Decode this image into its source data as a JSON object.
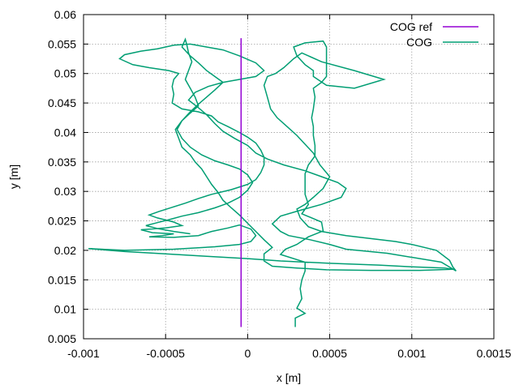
{
  "chart_data": {
    "type": "line",
    "title": "",
    "xlabel": "x [m]",
    "ylabel": "y [m]",
    "xlim": [
      -0.001,
      0.0015
    ],
    "ylim": [
      0.005,
      0.06
    ],
    "grid": true,
    "legend_position": "top-right",
    "x_ticks": [
      {
        "value": -0.001,
        "label": "-0.001"
      },
      {
        "value": -0.0005,
        "label": "-0.0005"
      },
      {
        "value": 0,
        "label": "0"
      },
      {
        "value": 0.0005,
        "label": "0.0005"
      },
      {
        "value": 0.001,
        "label": "0.001"
      },
      {
        "value": 0.0015,
        "label": "0.0015"
      }
    ],
    "y_ticks": [
      {
        "value": 0.005,
        "label": "0.005"
      },
      {
        "value": 0.01,
        "label": "0.01"
      },
      {
        "value": 0.015,
        "label": "0.015"
      },
      {
        "value": 0.02,
        "label": "0.02"
      },
      {
        "value": 0.025,
        "label": "0.025"
      },
      {
        "value": 0.03,
        "label": "0.03"
      },
      {
        "value": 0.035,
        "label": "0.035"
      },
      {
        "value": 0.04,
        "label": "0.04"
      },
      {
        "value": 0.045,
        "label": "0.045"
      },
      {
        "value": 0.05,
        "label": "0.05"
      },
      {
        "value": 0.055,
        "label": "0.055"
      },
      {
        "value": 0.06,
        "label": "0.06"
      }
    ],
    "series": [
      {
        "name": "COG ref",
        "color": "#9400d3",
        "points": [
          [
            -4e-05,
            0.007
          ],
          [
            -4e-05,
            0.056
          ]
        ]
      },
      {
        "name": "COG",
        "color": "#009e73",
        "points": [
          [
            0.00029,
            0.007
          ],
          [
            0.00029,
            0.0085
          ],
          [
            0.00035,
            0.0093
          ],
          [
            0.0003,
            0.0102
          ],
          [
            0.00033,
            0.0118
          ],
          [
            0.00032,
            0.0135
          ],
          [
            0.00033,
            0.015
          ],
          [
            0.00035,
            0.0165
          ],
          [
            0.00035,
            0.018
          ],
          [
            0.0002,
            0.0193
          ],
          [
            0.00023,
            0.0202
          ],
          [
            0.0003,
            0.021
          ],
          [
            0.00037,
            0.0223
          ],
          [
            0.00046,
            0.0233
          ],
          [
            0.00045,
            0.0248
          ],
          [
            0.00033,
            0.0262
          ],
          [
            0.00037,
            0.0278
          ],
          [
            0.00035,
            0.0295
          ],
          [
            0.00035,
            0.0312
          ],
          [
            0.00035,
            0.033
          ],
          [
            0.00037,
            0.0345
          ],
          [
            0.00041,
            0.036
          ],
          [
            0.00041,
            0.0378
          ],
          [
            0.0004,
            0.0395
          ],
          [
            0.0004,
            0.041
          ],
          [
            0.00039,
            0.0425
          ],
          [
            0.0004,
            0.044
          ],
          [
            0.00041,
            0.046
          ],
          [
            0.0004,
            0.0475
          ],
          [
            0.00045,
            0.0485
          ],
          [
            0.00048,
            0.0495
          ],
          [
            0.00048,
            0.051
          ],
          [
            0.00048,
            0.053
          ],
          [
            0.00048,
            0.0545
          ],
          [
            0.00046,
            0.0555
          ],
          [
            0.00035,
            0.0552
          ],
          [
            0.00028,
            0.0545
          ],
          [
            0.0003,
            0.053
          ],
          [
            0.00035,
            0.0515
          ],
          [
            0.0004,
            0.0505
          ],
          [
            0.0004,
            0.0495
          ],
          [
            0.00048,
            0.048
          ],
          [
            0.00065,
            0.0475
          ],
          [
            0.00083,
            0.049
          ],
          [
            0.00065,
            0.0505
          ],
          [
            0.00045,
            0.052
          ],
          [
            0.00033,
            0.0535
          ],
          [
            0.00028,
            0.0525
          ],
          [
            0.00022,
            0.051
          ],
          [
            0.00017,
            0.05
          ],
          [
            0.00012,
            0.0495
          ],
          [
            0.0001,
            0.048
          ],
          [
            0.00012,
            0.046
          ],
          [
            0.00014,
            0.044
          ],
          [
            0.00018,
            0.0425
          ],
          [
            0.00024,
            0.041
          ],
          [
            0.0003,
            0.0395
          ],
          [
            0.00035,
            0.038
          ],
          [
            0.0004,
            0.0365
          ],
          [
            0.00044,
            0.0345
          ],
          [
            0.0005,
            0.0325
          ],
          [
            0.00046,
            0.0305
          ],
          [
            0.0004,
            0.029
          ],
          [
            0.00035,
            0.0278
          ],
          [
            0.0003,
            0.027
          ],
          [
            0.00032,
            0.0255
          ],
          [
            0.00037,
            0.024
          ],
          [
            0.00045,
            0.0232
          ],
          [
            0.0006,
            0.0225
          ],
          [
            0.00075,
            0.022
          ],
          [
            0.0009,
            0.0215
          ],
          [
            0.001,
            0.021
          ],
          [
            0.00115,
            0.02
          ],
          [
            0.00123,
            0.0183
          ],
          [
            0.00125,
            0.0172
          ],
          [
            0.00127,
            0.0165
          ],
          [
            0.00118,
            0.018
          ],
          [
            0.00085,
            0.0195
          ],
          [
            0.0006,
            0.0202
          ],
          [
            0.0005,
            0.021
          ],
          [
            0.00038,
            0.0218
          ],
          [
            0.00025,
            0.0225
          ],
          [
            0.0002,
            0.0232
          ],
          [
            0.00015,
            0.0245
          ],
          [
            0.0002,
            0.0258
          ],
          [
            0.00032,
            0.0268
          ],
          [
            0.00045,
            0.0278
          ],
          [
            0.00057,
            0.029
          ],
          [
            0.0006,
            0.0305
          ],
          [
            0.00055,
            0.0315
          ],
          [
            0.00045,
            0.0325
          ],
          [
            0.00035,
            0.0335
          ],
          [
            0.00022,
            0.0345
          ],
          [
            0.00012,
            0.0355
          ],
          [
            5e-05,
            0.0365
          ],
          [
            0.0,
            0.0378
          ],
          [
            -8e-05,
            0.039
          ],
          [
            -0.00015,
            0.0402
          ],
          [
            -0.0002,
            0.0415
          ],
          [
            -0.00025,
            0.043
          ],
          [
            -0.0003,
            0.0442
          ],
          [
            -0.00036,
            0.0455
          ],
          [
            -0.00032,
            0.0468
          ],
          [
            -0.00024,
            0.0478
          ],
          [
            -0.00015,
            0.0485
          ],
          [
            -5e-05,
            0.049
          ],
          [
            5e-05,
            0.0495
          ],
          [
            0.0001,
            0.0505
          ],
          [
            5e-05,
            0.0518
          ],
          [
            -5e-05,
            0.053
          ],
          [
            -0.00015,
            0.054
          ],
          [
            -0.00025,
            0.0545
          ],
          [
            -0.00035,
            0.055
          ],
          [
            -0.00045,
            0.0548
          ],
          [
            -0.00055,
            0.0542
          ],
          [
            -0.00065,
            0.0538
          ],
          [
            -0.00075,
            0.0532
          ],
          [
            -0.00078,
            0.0525
          ],
          [
            -0.0007,
            0.0515
          ],
          [
            -0.0006,
            0.051
          ],
          [
            -0.00048,
            0.0505
          ],
          [
            -0.00042,
            0.05
          ],
          [
            -0.00045,
            0.049
          ],
          [
            -0.00046,
            0.0478
          ],
          [
            -0.00045,
            0.0465
          ],
          [
            -0.00046,
            0.045
          ],
          [
            -0.0004,
            0.044
          ],
          [
            -0.0003,
            0.0435
          ],
          [
            -0.00022,
            0.0428
          ],
          [
            -0.00018,
            0.0418
          ],
          [
            -0.00012,
            0.041
          ],
          [
            -5e-05,
            0.04
          ],
          [
            0.0,
            0.0392
          ],
          [
            5e-05,
            0.0382
          ],
          [
            8e-05,
            0.037
          ],
          [
            0.0001,
            0.0358
          ],
          [
            0.0001,
            0.0345
          ],
          [
            8e-05,
            0.0332
          ],
          [
            5e-05,
            0.032
          ],
          [
            0.0,
            0.0312
          ],
          [
            -0.0001,
            0.0303
          ],
          [
            -0.00022,
            0.0295
          ],
          [
            -0.0003,
            0.0288
          ],
          [
            -0.00038,
            0.028
          ],
          [
            -0.00046,
            0.0273
          ],
          [
            -0.00054,
            0.0266
          ],
          [
            -0.0006,
            0.026
          ],
          [
            -0.00055,
            0.0255
          ],
          [
            -0.00045,
            0.0248
          ],
          [
            -0.0004,
            0.0242
          ],
          [
            -0.0005,
            0.0238
          ],
          [
            -0.00065,
            0.0235
          ],
          [
            -0.00058,
            0.023
          ],
          [
            -0.00045,
            0.0228
          ],
          [
            -0.00052,
            0.0225
          ],
          [
            -0.0006,
            0.0223
          ],
          [
            -0.00045,
            0.0222
          ],
          [
            -0.0003,
            0.0225
          ],
          [
            -0.00022,
            0.0232
          ],
          [
            -0.00012,
            0.0238
          ],
          [
            -5e-05,
            0.0243
          ],
          [
            2e-05,
            0.0236
          ],
          [
            5e-05,
            0.0225
          ],
          [
            2e-05,
            0.0215
          ],
          [
            -5e-05,
            0.021
          ],
          [
            -0.0002,
            0.0206
          ],
          [
            -0.00045,
            0.0202
          ],
          [
            -0.00075,
            0.02
          ],
          [
            -0.00097,
            0.0203
          ],
          [
            -0.00075,
            0.0198
          ],
          [
            -0.0005,
            0.0194
          ],
          [
            -0.00025,
            0.019
          ],
          [
            0.0,
            0.0186
          ],
          [
            0.0002,
            0.0182
          ],
          [
            0.0005,
            0.0178
          ],
          [
            0.0008,
            0.0175
          ],
          [
            0.001,
            0.0172
          ],
          [
            0.0012,
            0.017
          ],
          [
            0.00125,
            0.0168
          ],
          [
            0.00105,
            0.0166
          ],
          [
            0.00075,
            0.0166
          ],
          [
            0.00048,
            0.0167
          ],
          [
            0.0003,
            0.017
          ],
          [
            0.00015,
            0.0173
          ],
          [
            0.0001,
            0.0182
          ],
          [
            0.0001,
            0.0194
          ],
          [
            0.00015,
            0.0205
          ],
          [
            0.0001,
            0.0218
          ],
          [
            5e-05,
            0.0232
          ],
          [
            0.0,
            0.0246
          ],
          [
            -5e-05,
            0.026
          ],
          [
            -0.0001,
            0.0272
          ],
          [
            -0.00015,
            0.0285
          ],
          [
            -0.00018,
            0.0298
          ],
          [
            -0.00022,
            0.0312
          ],
          [
            -0.00025,
            0.0325
          ],
          [
            -0.00028,
            0.0338
          ],
          [
            -0.00032,
            0.035
          ],
          [
            -0.00035,
            0.0362
          ],
          [
            -0.0004,
            0.0375
          ],
          [
            -0.00042,
            0.039
          ],
          [
            -0.00044,
            0.0405
          ],
          [
            -0.0004,
            0.042
          ],
          [
            -0.00035,
            0.0433
          ],
          [
            -0.0003,
            0.0445
          ],
          [
            -0.00032,
            0.046
          ],
          [
            -0.00035,
            0.0475
          ],
          [
            -0.00038,
            0.049
          ],
          [
            -0.00036,
            0.0505
          ],
          [
            -0.00034,
            0.052
          ],
          [
            -0.00036,
            0.0535
          ],
          [
            -0.00037,
            0.0548
          ],
          [
            -0.00038,
            0.0558
          ],
          [
            -0.0004,
            0.0545
          ],
          [
            -0.00035,
            0.053
          ],
          [
            -0.0003,
            0.0518
          ],
          [
            -0.00025,
            0.0505
          ],
          [
            -0.0002,
            0.0495
          ],
          [
            -0.00015,
            0.0485
          ],
          [
            -0.0002,
            0.0472
          ],
          [
            -0.00025,
            0.046
          ],
          [
            -0.0003,
            0.0448
          ],
          [
            -0.00035,
            0.0435
          ],
          [
            -0.0004,
            0.042
          ],
          [
            -0.00043,
            0.0405
          ],
          [
            -0.0004,
            0.039
          ],
          [
            -0.00035,
            0.0375
          ],
          [
            -0.00028,
            0.0362
          ],
          [
            -0.0002,
            0.0352
          ],
          [
            -0.00012,
            0.0345
          ],
          [
            -5e-05,
            0.0338
          ],
          [
            0.0,
            0.0328
          ],
          [
            3e-05,
            0.0315
          ],
          [
            0.0,
            0.0302
          ],
          [
            -5e-05,
            0.029
          ],
          [
            -0.00012,
            0.028
          ],
          [
            -0.0002,
            0.0272
          ],
          [
            -0.0003,
            0.0264
          ],
          [
            -0.0004,
            0.0258
          ],
          [
            -0.00048,
            0.0252
          ],
          [
            -0.00055,
            0.0247
          ],
          [
            -0.00062,
            0.0242
          ],
          [
            -0.00055,
            0.0237
          ],
          [
            -0.00045,
            0.0232
          ],
          [
            -0.00035,
            0.0228
          ]
        ]
      }
    ]
  }
}
